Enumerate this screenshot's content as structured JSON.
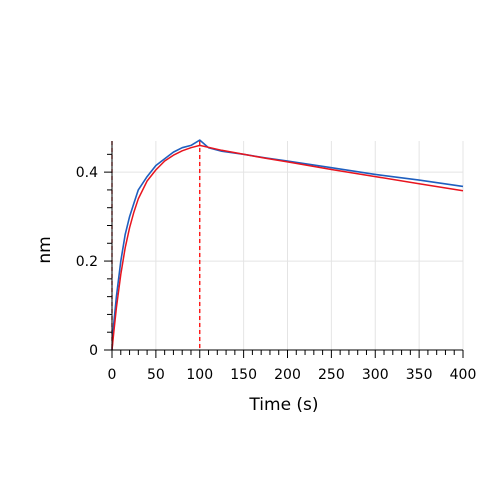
{
  "chart_data": {
    "type": "line",
    "title": "",
    "xlabel": "Time (s)",
    "ylabel": "nm",
    "xlim": [
      0,
      400
    ],
    "ylim": [
      0,
      0.47
    ],
    "x_ticks": [
      0,
      50,
      100,
      150,
      200,
      250,
      300,
      350,
      400
    ],
    "x_tick_labels": [
      "0",
      "50",
      "100",
      "150",
      "200",
      "250",
      "300",
      "350",
      "400"
    ],
    "y_ticks": [
      0,
      0.2,
      0.4
    ],
    "y_tick_labels": [
      "0",
      "0.2",
      "0.4"
    ],
    "grid": true,
    "legend": "none",
    "markers": [
      {
        "x": 0,
        "style": "dashed",
        "color": "#cc0000"
      },
      {
        "x": 100,
        "style": "dashed",
        "color": "#ff0000"
      }
    ],
    "series": [
      {
        "color": "#1f5fbf",
        "x": [
          0,
          2,
          5,
          10,
          15,
          20,
          25,
          30,
          40,
          50,
          60,
          70,
          80,
          90,
          100,
          110,
          125,
          150,
          175,
          200,
          250,
          300,
          350,
          400
        ],
        "y": [
          0.0,
          0.06,
          0.12,
          0.2,
          0.26,
          0.3,
          0.33,
          0.36,
          0.39,
          0.415,
          0.43,
          0.445,
          0.455,
          0.46,
          0.472,
          0.455,
          0.447,
          0.44,
          0.432,
          0.425,
          0.41,
          0.395,
          0.382,
          0.368
        ]
      },
      {
        "color": "#e8141e",
        "x": [
          0,
          2,
          5,
          10,
          15,
          20,
          25,
          30,
          40,
          50,
          60,
          70,
          80,
          90,
          100,
          125,
          150,
          175,
          200,
          250,
          300,
          350,
          400
        ],
        "y": [
          0.0,
          0.04,
          0.095,
          0.17,
          0.23,
          0.275,
          0.31,
          0.34,
          0.38,
          0.405,
          0.425,
          0.438,
          0.448,
          0.455,
          0.46,
          0.449,
          0.44,
          0.431,
          0.423,
          0.406,
          0.39,
          0.374,
          0.358
        ]
      }
    ]
  }
}
